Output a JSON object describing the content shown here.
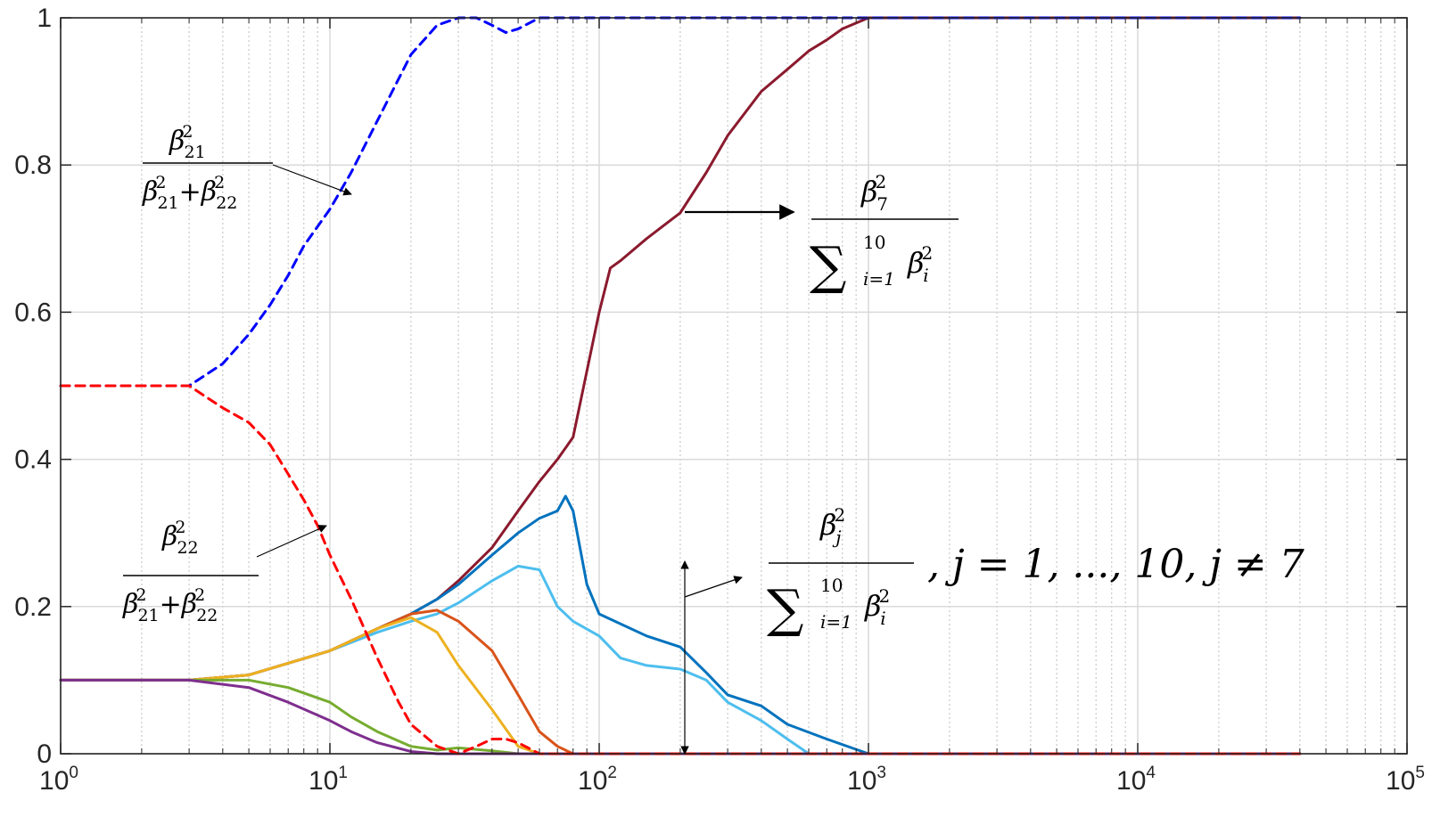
{
  "chart_data": {
    "type": "line",
    "x_scale": "log",
    "xlim": [
      1,
      100000
    ],
    "ylim": [
      0,
      1
    ],
    "grid": true,
    "x_ticks": [
      {
        "base": "10",
        "exp": "0"
      },
      {
        "base": "10",
        "exp": "1"
      },
      {
        "base": "10",
        "exp": "2"
      },
      {
        "base": "10",
        "exp": "3"
      },
      {
        "base": "10",
        "exp": "4"
      },
      {
        "base": "10",
        "exp": "5"
      }
    ],
    "y_ticks": [
      "0",
      "0.2",
      "0.4",
      "0.6",
      "0.8",
      "1"
    ],
    "series": [
      {
        "color": "#0000ff",
        "dash": true,
        "x": [
          1,
          3,
          4,
          5,
          6,
          7,
          8,
          10,
          12,
          15,
          20,
          25,
          30,
          35,
          40,
          45,
          50,
          60,
          80,
          100,
          1000,
          10000,
          40000
        ],
        "y": [
          0.5,
          0.5,
          0.53,
          0.57,
          0.61,
          0.65,
          0.69,
          0.74,
          0.79,
          0.86,
          0.95,
          0.99,
          1.0,
          1.0,
          0.99,
          0.98,
          0.985,
          1.0,
          1.0,
          1.0,
          1.0,
          1.0,
          1.0
        ]
      },
      {
        "color": "#ff0000",
        "dash": true,
        "x": [
          1,
          3,
          4,
          5,
          6,
          7,
          8,
          9,
          10,
          12,
          15,
          18,
          20,
          25,
          30,
          35,
          40,
          45,
          50,
          60,
          70,
          100,
          1000,
          10000,
          40000
        ],
        "y": [
          0.5,
          0.5,
          0.47,
          0.45,
          0.42,
          0.38,
          0.345,
          0.31,
          0.27,
          0.21,
          0.13,
          0.07,
          0.04,
          0.01,
          0.0,
          0.01,
          0.02,
          0.02,
          0.015,
          0.0,
          0.0,
          0.0,
          0.0,
          0.0,
          0.0
        ]
      },
      {
        "color": "#8b1a2e",
        "dash": false,
        "x": [
          1,
          3,
          5,
          10,
          15,
          20,
          25,
          30,
          40,
          50,
          60,
          70,
          80,
          90,
          100,
          110,
          120,
          150,
          200,
          250,
          300,
          400,
          500,
          600,
          700,
          800,
          1000,
          2000,
          10000,
          40000
        ],
        "y": [
          0.1,
          0.1,
          0.107,
          0.14,
          0.17,
          0.19,
          0.21,
          0.235,
          0.28,
          0.33,
          0.37,
          0.4,
          0.43,
          0.52,
          0.6,
          0.66,
          0.67,
          0.7,
          0.735,
          0.79,
          0.84,
          0.9,
          0.93,
          0.955,
          0.97,
          0.985,
          1.0,
          1.0,
          1.0,
          1.0
        ]
      },
      {
        "color": "#0072bd",
        "dash": false,
        "x": [
          1,
          3,
          5,
          10,
          15,
          20,
          25,
          30,
          40,
          50,
          60,
          70,
          75,
          80,
          90,
          100,
          150,
          200,
          250,
          300,
          400,
          500,
          700,
          1000,
          2000,
          40000
        ],
        "y": [
          0.1,
          0.1,
          0.107,
          0.14,
          0.17,
          0.19,
          0.21,
          0.23,
          0.27,
          0.3,
          0.32,
          0.33,
          0.35,
          0.33,
          0.23,
          0.19,
          0.16,
          0.145,
          0.11,
          0.08,
          0.065,
          0.04,
          0.02,
          0.0,
          0.0,
          0.0
        ]
      },
      {
        "color": "#4dbeee",
        "dash": false,
        "x": [
          1,
          3,
          5,
          10,
          15,
          20,
          25,
          30,
          40,
          50,
          60,
          70,
          80,
          100,
          120,
          150,
          200,
          250,
          300,
          400,
          500,
          600,
          1000,
          40000
        ],
        "y": [
          0.1,
          0.1,
          0.107,
          0.14,
          0.165,
          0.18,
          0.19,
          0.205,
          0.235,
          0.255,
          0.25,
          0.2,
          0.18,
          0.16,
          0.13,
          0.12,
          0.115,
          0.1,
          0.07,
          0.045,
          0.02,
          0.0,
          0.0,
          0.0
        ]
      },
      {
        "color": "#d95319",
        "dash": false,
        "x": [
          1,
          3,
          5,
          10,
          15,
          20,
          25,
          30,
          40,
          50,
          60,
          70,
          80,
          100,
          40000
        ],
        "y": [
          0.1,
          0.1,
          0.107,
          0.14,
          0.17,
          0.19,
          0.195,
          0.18,
          0.14,
          0.08,
          0.03,
          0.01,
          0.0,
          0.0,
          0.0
        ]
      },
      {
        "color": "#edb120",
        "dash": false,
        "x": [
          1,
          3,
          5,
          10,
          15,
          20,
          25,
          30,
          40,
          50,
          60,
          70,
          100,
          40000
        ],
        "y": [
          0.1,
          0.1,
          0.107,
          0.14,
          0.17,
          0.185,
          0.165,
          0.12,
          0.06,
          0.01,
          0.0,
          0.0,
          0.0,
          0.0
        ]
      },
      {
        "color": "#77ac30",
        "dash": false,
        "x": [
          1,
          3,
          5,
          7,
          10,
          12,
          15,
          20,
          25,
          30,
          40,
          50,
          60,
          100,
          40000
        ],
        "y": [
          0.1,
          0.1,
          0.1,
          0.09,
          0.07,
          0.05,
          0.03,
          0.01,
          0.005,
          0.008,
          0.004,
          0.0,
          0.0,
          0.0,
          0.0
        ]
      },
      {
        "color": "#7e2f8e",
        "dash": false,
        "x": [
          1,
          3,
          5,
          7,
          10,
          12,
          15,
          20,
          25,
          30,
          40,
          100,
          40000
        ],
        "y": [
          0.1,
          0.1,
          0.09,
          0.07,
          0.045,
          0.03,
          0.015,
          0.003,
          0.0,
          0.0,
          0.0,
          0.0,
          0.0
        ]
      }
    ],
    "annotations": {
      "a1": {
        "num": "β",
        "num_sup": "2",
        "num_sub": "21",
        "den1": "β",
        "den1_sup": "2",
        "den1_sub": "21",
        "plus": "+",
        "den2": "β",
        "den2_sup": "2",
        "den2_sub": "22"
      },
      "a2": {
        "num": "β",
        "num_sup": "2",
        "num_sub": "22",
        "den1": "β",
        "den1_sup": "2",
        "den1_sub": "21",
        "plus": "+",
        "den2": "β",
        "den2_sup": "2",
        "den2_sub": "22"
      },
      "a3": {
        "num": "β",
        "num_sup": "2",
        "num_sub": "7",
        "sum": "∑",
        "sum_top": "10",
        "sum_bot": "i=1",
        "term": "β",
        "term_sup": "2",
        "term_sub": "i"
      },
      "a4": {
        "num": "β",
        "num_sup": "2",
        "num_sub": "j",
        "sum": "∑",
        "sum_top": "10",
        "sum_bot": "i=1",
        "term": "β",
        "term_sup": "2",
        "term_sub": "i",
        "suffix": ",  j = 1, ..., 10, j ≠ 7"
      }
    }
  }
}
